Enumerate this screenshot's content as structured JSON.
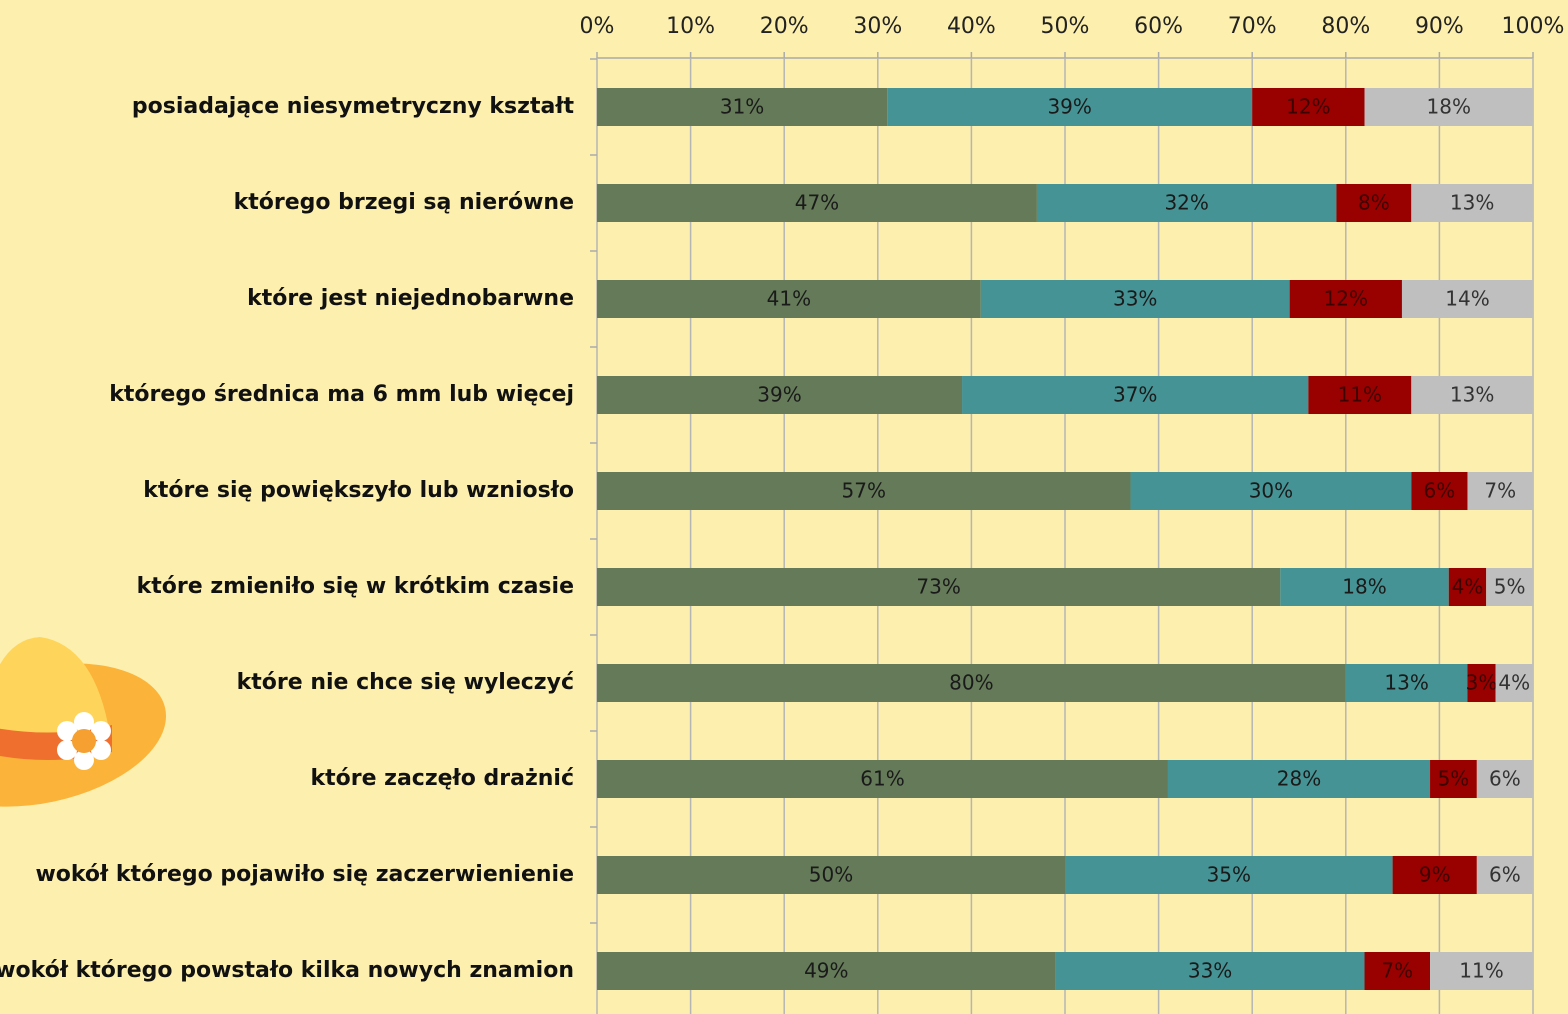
{
  "chart_data": {
    "type": "stacked-bar-horizontal",
    "categories": [
      "posiadające niesymetryczny kształt",
      "którego brzegi są nierówne",
      "które jest niejednobarwne",
      "którego średnica ma 6 mm lub więcej",
      "które się powiększyło lub wzniosło",
      "które zmieniło się w krótkim czasie",
      "które nie chce się wyleczyć",
      "które zaczęło drażnić",
      "wokół którego pojawiło się zaczerwienienie",
      "wokół którego powstało kilka nowych znamion"
    ],
    "series": [
      {
        "color": "#647a58",
        "values": [
          31,
          47,
          41,
          39,
          57,
          73,
          80,
          61,
          50,
          49
        ],
        "value_labels": [
          "31%",
          "47%",
          "41%",
          "39%",
          "57%",
          "73%",
          "80%",
          "61%",
          "50%",
          "49%"
        ]
      },
      {
        "color": "#459395",
        "values": [
          39,
          32,
          33,
          37,
          30,
          18,
          13,
          28,
          35,
          33
        ],
        "value_labels": [
          "39%",
          "32%",
          "33%",
          "37%",
          "30%",
          "18%",
          "13%",
          "28%",
          "35%",
          "33%"
        ]
      },
      {
        "color": "#990000",
        "values": [
          12,
          8,
          12,
          11,
          6,
          4,
          3,
          5,
          9,
          7
        ],
        "value_labels": [
          "12%",
          "8%",
          "12%",
          "11%",
          "6%",
          "4%",
          "3%",
          "5%",
          "9%",
          "7%"
        ]
      },
      {
        "color": "#bfbfbf",
        "values": [
          18,
          13,
          14,
          13,
          7,
          5,
          4,
          6,
          6,
          11
        ],
        "value_labels": [
          "18%",
          "13%",
          "14%",
          "13%",
          "7%",
          "5%",
          "4%",
          "6%",
          "6%",
          "11%"
        ]
      }
    ],
    "xlim": [
      0,
      100
    ],
    "xticks": [
      {
        "value": 0,
        "label": "0%"
      },
      {
        "value": 10,
        "label": "10%"
      },
      {
        "value": 20,
        "label": "20%"
      },
      {
        "value": 30,
        "label": "30%"
      },
      {
        "value": 40,
        "label": "40%"
      },
      {
        "value": 50,
        "label": "50%"
      },
      {
        "value": 60,
        "label": "60%"
      },
      {
        "value": 70,
        "label": "70%"
      },
      {
        "value": 80,
        "label": "80%"
      },
      {
        "value": 90,
        "label": "90%"
      },
      {
        "value": 100,
        "label": "100%"
      }
    ],
    "grid": true
  }
}
